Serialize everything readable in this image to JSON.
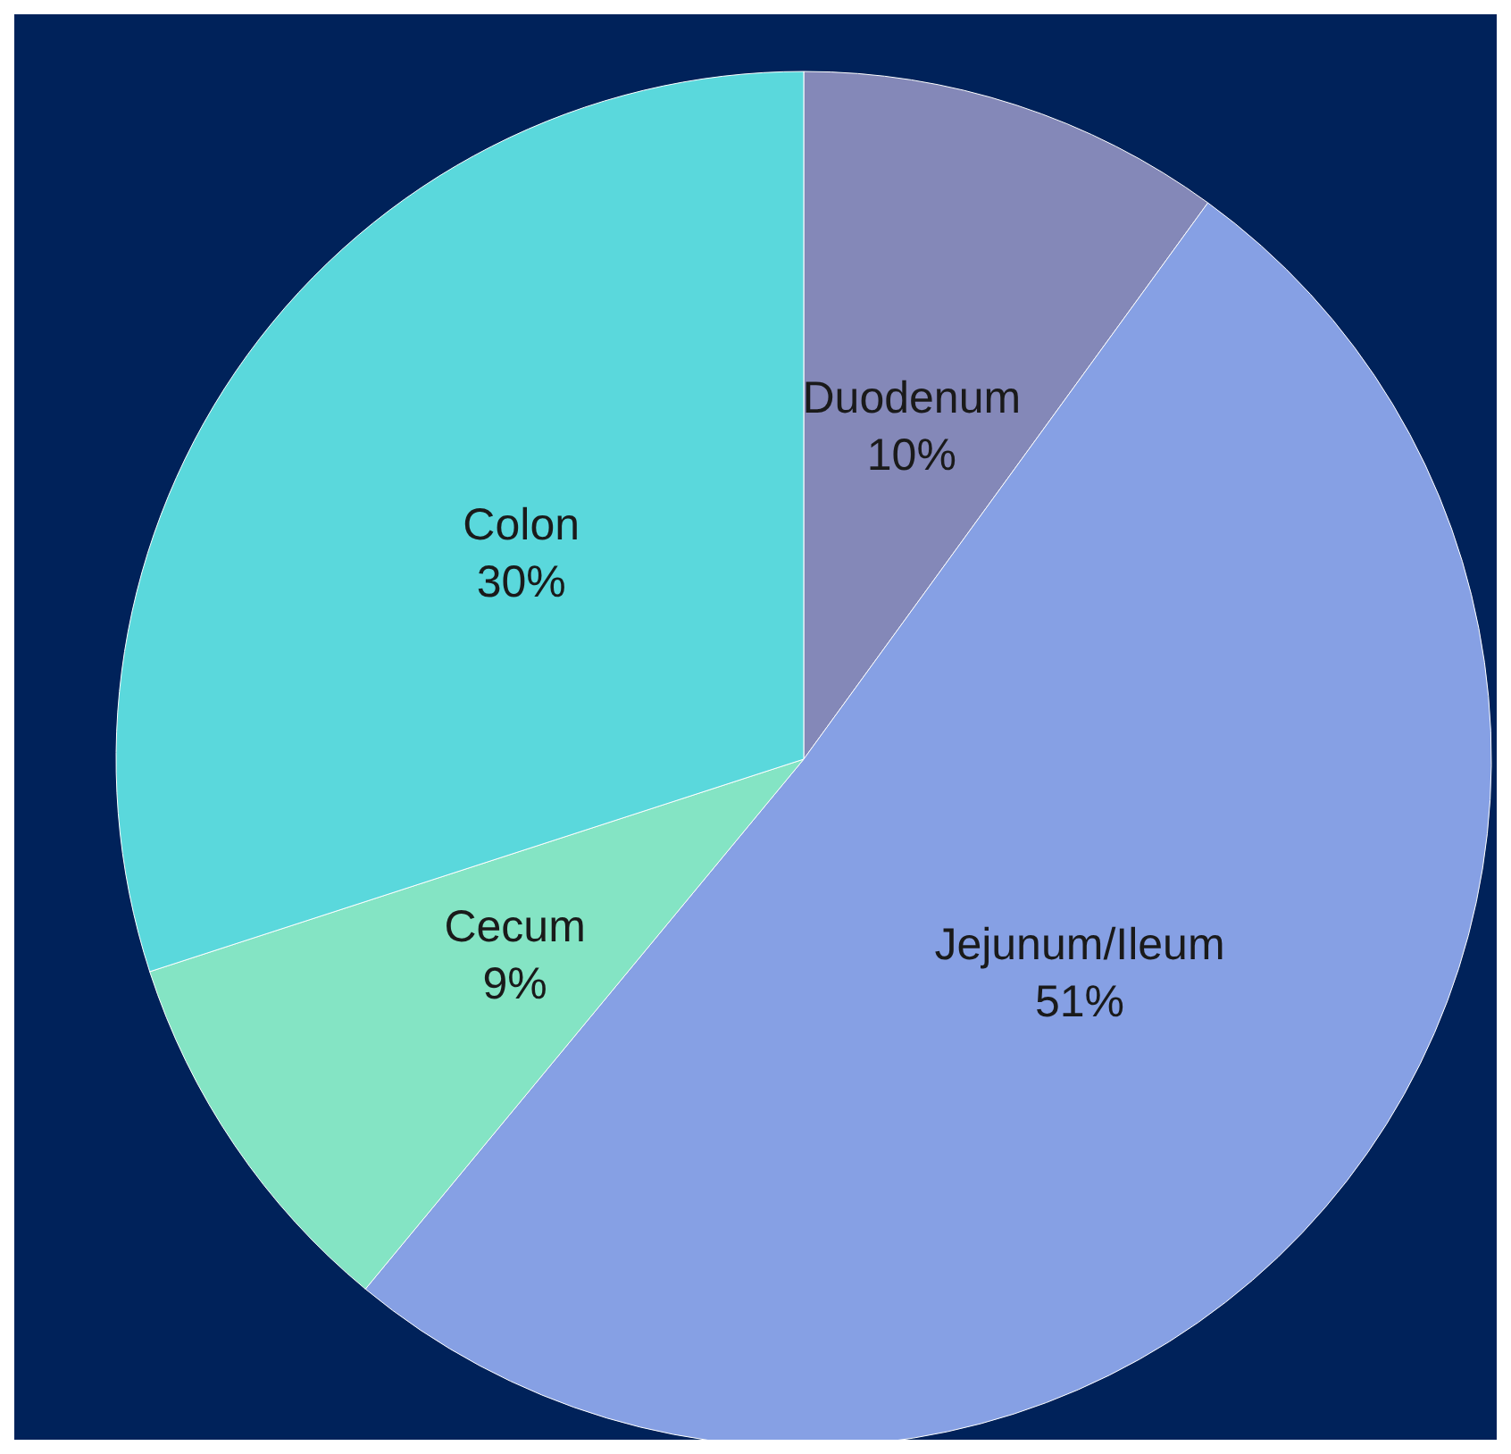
{
  "chart_data": {
    "type": "pie",
    "categories": [
      "Duodenum",
      "Jejunum/Ileum",
      "Cecum",
      "Colon"
    ],
    "values": [
      10,
      51,
      9,
      30
    ],
    "colors": [
      "#8488b8",
      "#86a0e4",
      "#84e4c4",
      "#5ad8dc"
    ],
    "value_labels": [
      "10%",
      "51%",
      "9%",
      "30%"
    ]
  }
}
